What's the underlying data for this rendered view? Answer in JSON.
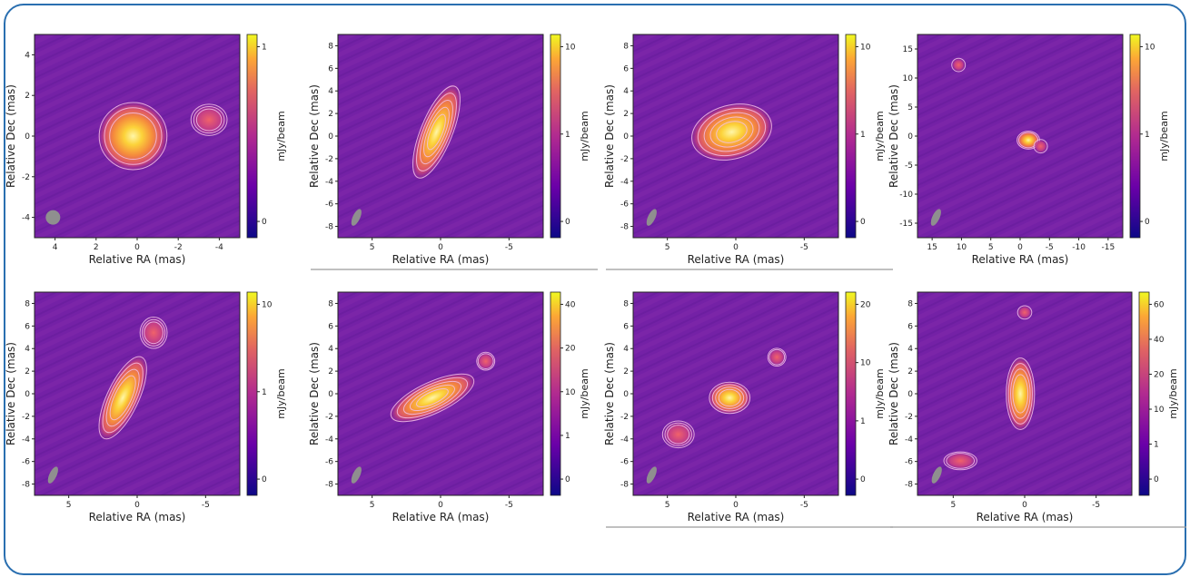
{
  "colors": {
    "frame": "#2a6fb0",
    "map_background": "#7421a6",
    "contour": "#f3bfe8",
    "beam": "#8f8f8f"
  },
  "colormap": "plasma",
  "units": {
    "xlabel": "Relative RA (mas)",
    "ylabel": "Relative Dec (mas)",
    "colorbar_label": "mJy/beam"
  },
  "panels": [
    {
      "id": "p1",
      "xticks": [
        "4",
        "2",
        "0",
        "-2",
        "-4"
      ],
      "yticks": [
        "4",
        "2",
        "0",
        "-2",
        "-4"
      ],
      "colorbar_ticks": [
        "1",
        "0"
      ],
      "separator": false
    },
    {
      "id": "p2",
      "xticks": [
        "5",
        "0",
        "-5"
      ],
      "yticks": [
        "8",
        "6",
        "4",
        "2",
        "0",
        "-2",
        "-4",
        "-6",
        "-8"
      ],
      "colorbar_ticks": [
        "10",
        "1",
        "0"
      ],
      "separator": true
    },
    {
      "id": "p3",
      "xticks": [
        "5",
        "0",
        "-5"
      ],
      "yticks": [
        "8",
        "6",
        "4",
        "2",
        "0",
        "-2",
        "-4",
        "-6",
        "-8"
      ],
      "colorbar_ticks": [
        "10",
        "1",
        "0"
      ],
      "separator": true
    },
    {
      "id": "p4",
      "xticks": [
        "15",
        "10",
        "5",
        "0",
        "-5",
        "-10",
        "-15"
      ],
      "yticks": [
        "15",
        "10",
        "5",
        "0",
        "-5",
        "-10",
        "-15"
      ],
      "colorbar_ticks": [
        "10",
        "1",
        "0"
      ],
      "separator": false
    },
    {
      "id": "p5",
      "xticks": [
        "5",
        "0",
        "-5"
      ],
      "yticks": [
        "8",
        "6",
        "4",
        "2",
        "0",
        "-2",
        "-4",
        "-6",
        "-8"
      ],
      "colorbar_ticks": [
        "10",
        "1",
        "0"
      ],
      "separator": false
    },
    {
      "id": "p6",
      "xticks": [
        "5",
        "0",
        "-5"
      ],
      "yticks": [
        "8",
        "6",
        "4",
        "2",
        "0",
        "-2",
        "-4",
        "-6",
        "-8"
      ],
      "colorbar_ticks": [
        "40",
        "20",
        "10",
        "1",
        "0"
      ],
      "separator": false
    },
    {
      "id": "p7",
      "xticks": [
        "5",
        "0",
        "-5"
      ],
      "yticks": [
        "8",
        "6",
        "4",
        "2",
        "0",
        "-2",
        "-4",
        "-6",
        "-8"
      ],
      "colorbar_ticks": [
        "20",
        "10",
        "1",
        "0"
      ],
      "separator": true
    },
    {
      "id": "p8",
      "xticks": [
        "5",
        "0",
        "-5"
      ],
      "yticks": [
        "8",
        "6",
        "4",
        "2",
        "0",
        "-2",
        "-4",
        "-6",
        "-8"
      ],
      "colorbar_ticks": [
        "60",
        "40",
        "20",
        "10",
        "1",
        "0"
      ],
      "separator": true
    }
  ]
}
